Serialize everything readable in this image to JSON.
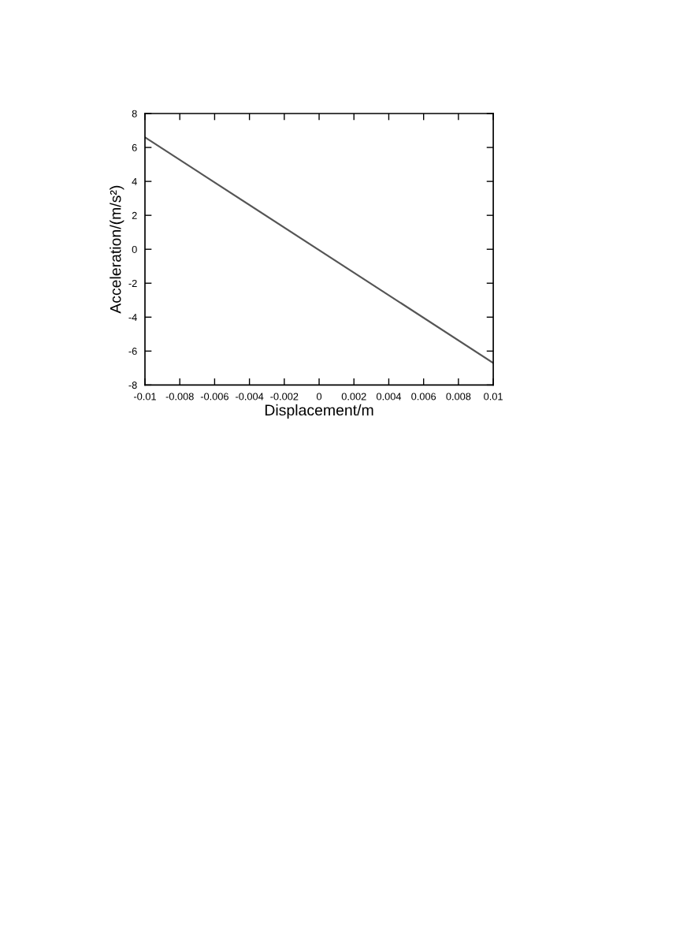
{
  "chart_data": {
    "type": "line",
    "xlabel": "Displacement/m",
    "ylabel": "Acceleration/(m/s²)",
    "x": [
      -0.01,
      0.01
    ],
    "series": [
      {
        "color": "#555555",
        "values": [
          6.6,
          -6.7
        ]
      }
    ],
    "xlim": [
      -0.01,
      0.01
    ],
    "xticks": [
      -0.01,
      -0.008,
      -0.006,
      -0.004,
      -0.002,
      0,
      0.002,
      0.004,
      0.006,
      0.008,
      0.01
    ],
    "ylim": [
      -8,
      8
    ],
    "yticks": [
      -8,
      -6,
      -4,
      -2,
      0,
      2,
      4,
      6,
      8
    ],
    "grid": false,
    "legend": false,
    "marker": "none",
    "line_style": "solid"
  }
}
